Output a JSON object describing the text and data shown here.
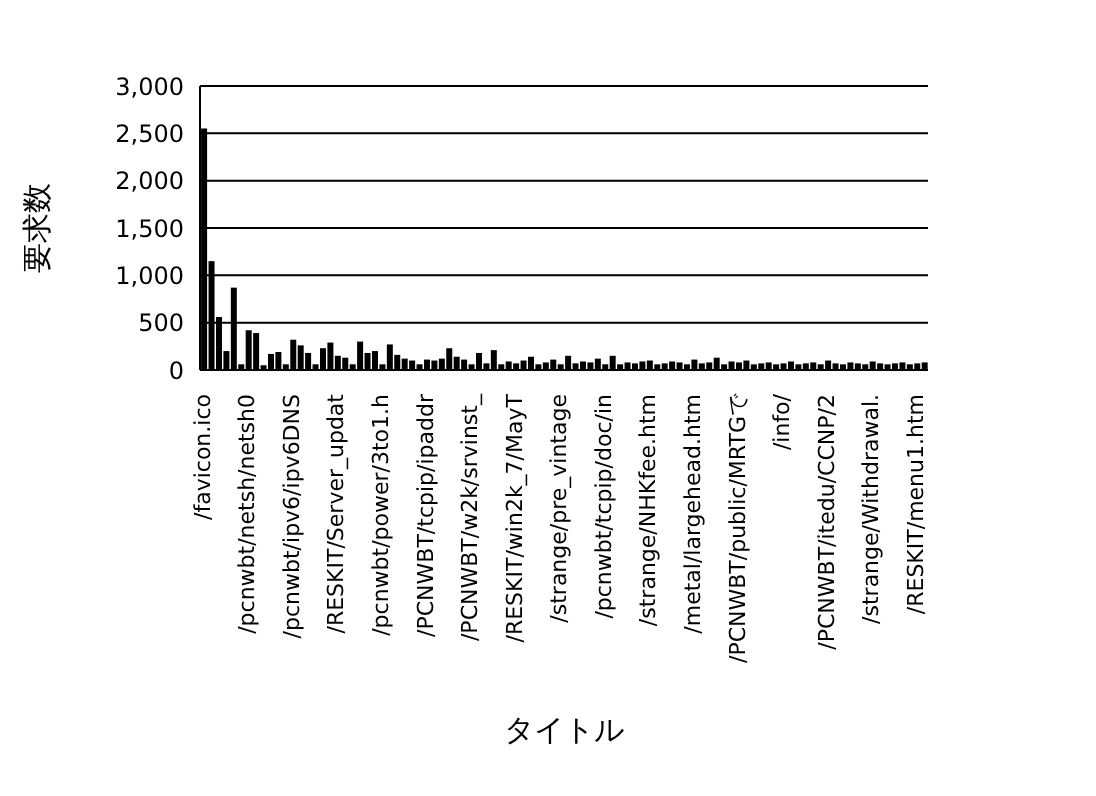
{
  "chart_data": {
    "type": "bar",
    "xlabel": "タイトル",
    "ylabel": "要求数",
    "categories": [
      "/favicon.ico",
      null,
      null,
      null,
      null,
      null,
      "/pcnwbt/netsh/netsh0",
      null,
      null,
      null,
      null,
      null,
      "/pcnwbt/ipv6/ipv6DNS",
      null,
      null,
      null,
      null,
      null,
      "/RESKIT/Server_updat",
      null,
      null,
      null,
      null,
      null,
      "/pcnwbt/power/3to1.h",
      null,
      null,
      null,
      null,
      null,
      "/PCNWBT/tcpip/ipaddr",
      null,
      null,
      null,
      null,
      null,
      "/PCNWBT/w2k/srvinst_",
      null,
      null,
      null,
      null,
      null,
      "/RESKIT/win2k_7/MayT",
      null,
      null,
      null,
      null,
      null,
      "/strange/pre_vintage",
      null,
      null,
      null,
      null,
      null,
      "/pcnwbt/tcpip/doc/in",
      null,
      null,
      null,
      null,
      null,
      "/strange/NHKfee.htm",
      null,
      null,
      null,
      null,
      null,
      "/metal/largehead.htm",
      null,
      null,
      null,
      null,
      null,
      "/PCNWBT/public/MRTGで",
      null,
      null,
      null,
      null,
      null,
      "/info/",
      null,
      null,
      null,
      null,
      null,
      "/PCNWBT/itedu/CCNP/2",
      null,
      null,
      null,
      null,
      null,
      "/strange/Withdrawal.",
      null,
      null,
      null,
      null,
      null,
      "/RESKIT/menu1.htm",
      null
    ],
    "values": [
      2550,
      1150,
      560,
      200,
      870,
      60,
      420,
      390,
      50,
      170,
      190,
      60,
      320,
      260,
      180,
      60,
      230,
      290,
      150,
      130,
      60,
      300,
      180,
      200,
      60,
      270,
      160,
      120,
      100,
      60,
      110,
      100,
      120,
      230,
      140,
      110,
      60,
      180,
      70,
      210,
      60,
      90,
      70,
      100,
      140,
      60,
      80,
      110,
      60,
      150,
      70,
      90,
      80,
      120,
      60,
      150,
      60,
      80,
      70,
      90,
      100,
      60,
      70,
      90,
      80,
      60,
      110,
      70,
      80,
      130,
      60,
      90,
      80,
      100,
      60,
      70,
      80,
      60,
      70,
      90,
      60,
      70,
      80,
      60,
      100,
      70,
      60,
      80,
      70,
      60,
      90,
      70,
      60,
      70,
      80,
      60,
      70,
      80
    ],
    "color": "#000000",
    "ylim": [
      0,
      3000
    ],
    "yticks": [
      0,
      500,
      {
        "value": 1000,
        "label": "1,000"
      },
      {
        "value": 1500,
        "label": "1,500"
      },
      {
        "value": 2000,
        "label": "2,000"
      },
      {
        "value": 2500,
        "label": "2,500"
      },
      {
        "value": 3000,
        "label": "3,000"
      }
    ],
    "grid": "y",
    "legend": false
  }
}
